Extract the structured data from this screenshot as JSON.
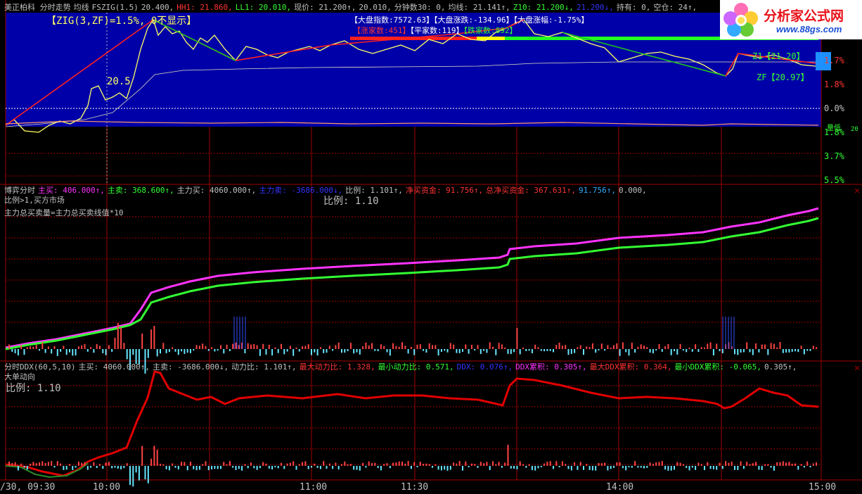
{
  "top_panel": {
    "header": [
      {
        "text": "美正柏科 分时走势",
        "color": "#c0c0c0"
      },
      {
        "text": "均线",
        "color": "#c0c0c0"
      },
      {
        "text": "FSZIG(1.5)",
        "color": "#c0c0c0"
      },
      {
        "text": "20.400,",
        "color": "#c0c0c0"
      },
      {
        "text": "HH1: 21.860,",
        "color": "#ff3333"
      },
      {
        "text": "LL1: 20.010,",
        "color": "#33ff33"
      },
      {
        "text": "现价: 21.200↑,",
        "color": "#c0c0c0"
      },
      {
        "text": "20.010,",
        "color": "#c0c0c0"
      },
      {
        "text": "分钟数30: 0,",
        "color": "#c0c0c0"
      },
      {
        "text": "均线: 21.141↑,",
        "color": "#c0c0c0"
      },
      {
        "text": "Z10: 21.200↓,",
        "color": "#33ff33"
      },
      {
        "text": "21.200↓,",
        "color": "#3333ff"
      },
      {
        "text": "持有: 0,",
        "color": "#c0c0c0"
      },
      {
        "text": "空仓: 24↑,",
        "color": "#c0c0c0"
      }
    ],
    "zig_label": "【ZIG(3,ZF)=1.5%, 0不显示】",
    "price_label": "20.5",
    "index_labels": [
      {
        "text": "【大盘指数:7572.63】",
        "color": "#ffffff"
      },
      {
        "text": "【大盘涨跌:-134.96】",
        "color": "#ffffff"
      },
      {
        "text": "【大盘涨幅:-1.75%】",
        "color": "#ffffff"
      }
    ],
    "breadth_labels": [
      {
        "text": "【涨家数:451】",
        "color": "#ff3333"
      },
      {
        "text": "【平家数:119】",
        "color": "#ffffff"
      },
      {
        "text": "【跌家数:892】",
        "color": "#33ff33"
      }
    ],
    "zf_top": "Z1【21.20】",
    "zf_bottom": "ZF【20.97】",
    "right_axis": [
      "1.7%",
      "1.8%",
      "0.0%",
      "1.8%",
      "3.7%",
      "5.5%"
    ],
    "right_small": [
      "量低",
      "20"
    ]
  },
  "logo": {
    "title": "分析家公式网",
    "url": "www.88gs.com"
  },
  "mid_panel": {
    "header": [
      {
        "text": "博弈分时",
        "color": "#c0c0c0"
      },
      {
        "text": "主买: 406.000↑,",
        "color": "#ff33ff"
      },
      {
        "text": "主卖: 368.600↑,",
        "color": "#33ff33"
      },
      {
        "text": "主力买: 4060.000↑,",
        "color": "#c0c0c0"
      },
      {
        "text": "主力卖: -3686.000↓,",
        "color": "#3333ff"
      },
      {
        "text": "比例: 1.101↑,",
        "color": "#c0c0c0"
      },
      {
        "text": "净买资金: 91.756↑,",
        "color": "#ff3333"
      },
      {
        "text": "总净买资金: 367.631↑,",
        "color": "#ff3333"
      },
      {
        "text": "91.756↑,",
        "color": "#33aaff"
      },
      {
        "text": "0.000,",
        "color": "#c0c0c0"
      }
    ],
    "line2": "比例>1,买方市场",
    "line3": "主力总买卖量=主力总买卖线值*10",
    "ratio": "比例: 1.10"
  },
  "bottom_panel": {
    "header": [
      {
        "text": "分时DDX(60,5,10)",
        "color": "#c0c0c0"
      },
      {
        "text": "主买: 4060.000↑,",
        "color": "#c0c0c0"
      },
      {
        "text": "主卖: -3686.000↓,",
        "color": "#c0c0c0"
      },
      {
        "text": "动力比: 1.101↑,",
        "color": "#c0c0c0"
      },
      {
        "text": "最大动力比: 1.328,",
        "color": "#ff3333"
      },
      {
        "text": "最小动力比: 0.571,",
        "color": "#33ff33"
      },
      {
        "text": "DDX: 0.076↑,",
        "color": "#3333ff"
      },
      {
        "text": "DDX累积: 0.305↑,",
        "color": "#ff33ff"
      },
      {
        "text": "最大DDX累积: 0.364,",
        "color": "#ff3333"
      },
      {
        "text": "最小DDX累积: -0.065,",
        "color": "#33ff33"
      },
      {
        "text": "0.305↑,",
        "color": "#c0c0c0"
      }
    ],
    "line2": "大单动向",
    "ratio": "比例: 1.10"
  },
  "time_axis": [
    "/30, 09:30",
    "10:00",
    "11:00",
    "11:30",
    "14:00",
    "15:00"
  ]
}
